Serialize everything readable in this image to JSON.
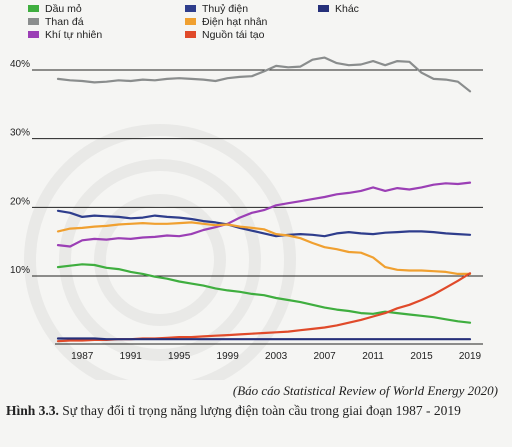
{
  "chart_data": {
    "type": "line",
    "x": [
      1985,
      1986,
      1987,
      1988,
      1989,
      1990,
      1991,
      1992,
      1993,
      1994,
      1995,
      1996,
      1997,
      1998,
      1999,
      2000,
      2001,
      2002,
      2003,
      2004,
      2005,
      2006,
      2007,
      2008,
      2009,
      2010,
      2011,
      2012,
      2013,
      2014,
      2015,
      2016,
      2017,
      2018,
      2019
    ],
    "x_ticks": [
      "1987",
      "1991",
      "1995",
      "1999",
      "2003",
      "2007",
      "2011",
      "2015",
      "2019"
    ],
    "y_ticks": [
      "10%",
      "20%",
      "30%",
      "40%"
    ],
    "ylim": [
      0,
      46
    ],
    "grid": "horizontal",
    "legend_position": "top",
    "series": [
      {
        "name": "Dầu mỏ",
        "color": "#3fae3f",
        "values": [
          11.3,
          11.5,
          11.7,
          11.6,
          11.2,
          11.0,
          10.6,
          10.3,
          9.9,
          9.6,
          9.2,
          8.9,
          8.6,
          8.2,
          7.9,
          7.7,
          7.4,
          7.2,
          6.8,
          6.5,
          6.2,
          5.8,
          5.4,
          5.1,
          4.9,
          4.6,
          4.5,
          4.8,
          4.6,
          4.4,
          4.2,
          4.0,
          3.7,
          3.4,
          3.2
        ]
      },
      {
        "name": "Than đá",
        "color": "#8a8d8d",
        "values": [
          38.7,
          38.5,
          38.4,
          38.2,
          38.3,
          38.5,
          38.4,
          38.6,
          38.5,
          38.7,
          38.8,
          38.7,
          38.6,
          38.4,
          38.8,
          39.0,
          39.1,
          39.8,
          40.6,
          40.4,
          40.5,
          41.5,
          41.8,
          41.0,
          40.7,
          40.8,
          41.3,
          40.7,
          41.3,
          41.2,
          39.6,
          38.7,
          38.6,
          38.3,
          36.9
        ]
      },
      {
        "name": "Khí tự nhiên",
        "color": "#9b3fb5",
        "values": [
          14.5,
          14.3,
          15.2,
          15.4,
          15.3,
          15.5,
          15.4,
          15.6,
          15.7,
          15.9,
          15.8,
          16.1,
          16.7,
          17.1,
          17.6,
          18.5,
          19.2,
          19.6,
          20.3,
          20.6,
          20.9,
          21.2,
          21.5,
          21.9,
          22.1,
          22.4,
          22.9,
          22.4,
          22.8,
          22.6,
          22.9,
          23.3,
          23.5,
          23.4,
          23.6
        ]
      },
      {
        "name": "Thuỷ điện",
        "color": "#2e3d8c",
        "values": [
          19.5,
          19.2,
          18.6,
          18.8,
          18.7,
          18.6,
          18.4,
          18.5,
          18.8,
          18.6,
          18.5,
          18.3,
          18.0,
          17.8,
          17.5,
          17.0,
          16.6,
          16.2,
          15.8,
          16.0,
          16.1,
          16.0,
          15.8,
          16.2,
          16.4,
          16.2,
          16.1,
          16.3,
          16.4,
          16.5,
          16.5,
          16.4,
          16.2,
          16.1,
          16.0
        ]
      },
      {
        "name": "Điện hạt nhân",
        "color": "#f0a030",
        "values": [
          16.5,
          16.9,
          17.0,
          17.2,
          17.3,
          17.5,
          17.6,
          17.7,
          17.6,
          17.6,
          17.7,
          17.8,
          17.6,
          17.4,
          17.5,
          17.2,
          17.0,
          16.8,
          16.1,
          15.9,
          15.5,
          14.8,
          14.2,
          13.9,
          13.5,
          13.4,
          12.7,
          11.3,
          10.9,
          10.8,
          10.8,
          10.7,
          10.6,
          10.3,
          10.3
        ]
      },
      {
        "name": "Nguồn tái tạo",
        "color": "#e04a2a",
        "values": [
          0.5,
          0.6,
          0.6,
          0.7,
          0.7,
          0.8,
          0.8,
          0.9,
          0.9,
          1.0,
          1.1,
          1.1,
          1.2,
          1.3,
          1.4,
          1.5,
          1.6,
          1.7,
          1.8,
          1.9,
          2.1,
          2.3,
          2.5,
          2.8,
          3.2,
          3.6,
          4.1,
          4.6,
          5.3,
          5.8,
          6.5,
          7.3,
          8.3,
          9.3,
          10.4
        ]
      },
      {
        "name": "Khác",
        "color": "#26307a",
        "values": [
          0.9,
          0.9,
          0.9,
          0.9,
          0.8,
          0.8,
          0.8,
          0.8,
          0.8,
          0.8,
          0.8,
          0.8,
          0.8,
          0.8,
          0.8,
          0.8,
          0.8,
          0.8,
          0.8,
          0.8,
          0.8,
          0.8,
          0.8,
          0.8,
          0.8,
          0.8,
          0.8,
          0.8,
          0.8,
          0.8,
          0.8,
          0.8,
          0.8,
          0.8,
          0.8
        ]
      }
    ]
  },
  "legend": [
    {
      "label": "Dầu mỏ",
      "color": "#3fae3f"
    },
    {
      "label": "Thuỷ điện",
      "color": "#2e3d8c"
    },
    {
      "label": "Khác",
      "color": "#26307a"
    },
    {
      "label": "Than đá",
      "color": "#8a8d8d"
    },
    {
      "label": "Điện hạt nhân",
      "color": "#f0a030"
    },
    {
      "label": "Khí tự nhiên",
      "color": "#9b3fb5"
    },
    {
      "label": "Nguồn tái tạo",
      "color": "#e04a2a"
    }
  ],
  "source_text": "(Báo cáo Statistical Review of World Energy 2020)",
  "caption": {
    "number": "Hình 3.3.",
    "text": " Sự thay đổi tỉ trọng năng lượng điện toàn cầu trong giai đoạn 1987 - 2019"
  }
}
